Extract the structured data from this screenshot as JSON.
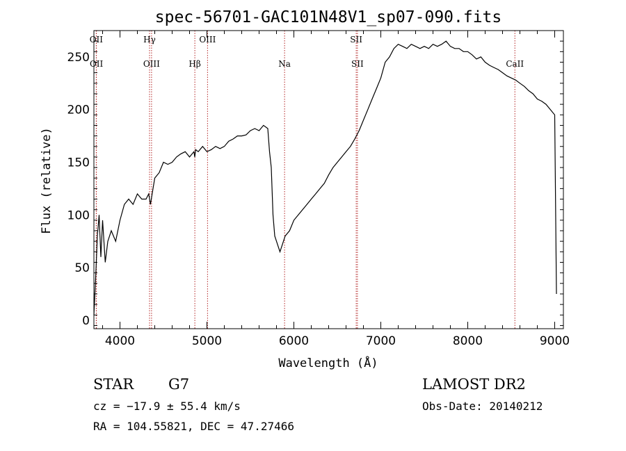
{
  "chart_data": {
    "type": "line",
    "title": "spec-56701-GAC101N48V1_sp07-090.fits",
    "xlabel": "Wavelength (Å)",
    "ylabel": "Flux (relative)",
    "xlim": [
      3700,
      9100
    ],
    "ylim": [
      -8,
      275
    ],
    "xticks": [
      4000,
      5000,
      6000,
      7000,
      8000,
      9000
    ],
    "yticks": [
      0,
      50,
      100,
      150,
      200,
      250
    ],
    "series": [
      {
        "x": [
          3700,
          3720,
          3740,
          3760,
          3780,
          3800,
          3830,
          3860,
          3900,
          3950,
          4000,
          4050,
          4100,
          4150,
          4200,
          4250,
          4300,
          4330,
          4350,
          4380,
          4400,
          4450,
          4500,
          4550,
          4600,
          4650,
          4700,
          4750,
          4800,
          4850,
          4860,
          4870,
          4900,
          4950,
          5000,
          5050,
          5100,
          5150,
          5200,
          5250,
          5300,
          5350,
          5400,
          5450,
          5500,
          5550,
          5600,
          5650,
          5700,
          5720,
          5740,
          5760,
          5780,
          5800,
          5820,
          5840,
          5860,
          5880,
          5900,
          5950,
          6000,
          6050,
          6100,
          6150,
          6200,
          6250,
          6300,
          6350,
          6400,
          6450,
          6500,
          6550,
          6600,
          6650,
          6700,
          6750,
          6800,
          6850,
          6900,
          6950,
          7000,
          7050,
          7100,
          7150,
          7200,
          7250,
          7300,
          7350,
          7400,
          7450,
          7500,
          7550,
          7600,
          7650,
          7700,
          7750,
          7800,
          7850,
          7900,
          7950,
          8000,
          8050,
          8100,
          8150,
          8200,
          8250,
          8300,
          8350,
          8400,
          8450,
          8500,
          8550,
          8600,
          8650,
          8700,
          8750,
          8800,
          8850,
          8900,
          8950,
          9000,
          9020
        ],
        "y": [
          5,
          40,
          80,
          100,
          60,
          95,
          55,
          75,
          85,
          75,
          95,
          110,
          115,
          110,
          120,
          115,
          115,
          120,
          110,
          125,
          135,
          140,
          150,
          148,
          150,
          155,
          158,
          160,
          155,
          160,
          155,
          162,
          160,
          165,
          160,
          162,
          165,
          163,
          165,
          170,
          172,
          175,
          175,
          176,
          180,
          182,
          180,
          185,
          182,
          160,
          145,
          100,
          80,
          75,
          70,
          65,
          70,
          75,
          80,
          85,
          95,
          100,
          105,
          110,
          115,
          120,
          125,
          130,
          138,
          145,
          150,
          155,
          160,
          165,
          172,
          180,
          190,
          200,
          210,
          220,
          230,
          245,
          250,
          258,
          262,
          260,
          258,
          262,
          260,
          258,
          260,
          258,
          262,
          260,
          262,
          265,
          260,
          258,
          258,
          255,
          255,
          252,
          248,
          250,
          245,
          242,
          240,
          238,
          235,
          232,
          230,
          228,
          225,
          222,
          218,
          215,
          210,
          208,
          205,
          200,
          195,
          25
        ]
      }
    ],
    "emission_lines": [
      {
        "label": "OII",
        "wavelength": 3727,
        "row": "top"
      },
      {
        "label": "OII",
        "wavelength": 3729,
        "row": "bottom"
      },
      {
        "label": "Hγ",
        "wavelength": 4340,
        "row": "top"
      },
      {
        "label": "OIII",
        "wavelength": 4363,
        "row": "bottom"
      },
      {
        "label": "Hβ",
        "wavelength": 4861,
        "row": "bottom"
      },
      {
        "label": "OIII",
        "wavelength": 5007,
        "row": "top"
      },
      {
        "label": "Na",
        "wavelength": 5893,
        "row": "bottom"
      },
      {
        "label": "SII",
        "wavelength": 6717,
        "row": "top"
      },
      {
        "label": "SII",
        "wavelength": 6731,
        "row": "bottom"
      },
      {
        "label": "CaII",
        "wavelength": 8542,
        "row": "bottom"
      }
    ],
    "line_color": "#000000",
    "marker_color": "#b22222",
    "grid": false,
    "legend": "none"
  },
  "info": {
    "object_class": "STAR",
    "subclass": "G7",
    "redshift": "cz = −17.9 ± 55.4 km/s",
    "coordinates": "RA = 104.55821, DEC =  47.27466",
    "survey": "LAMOST DR2",
    "obs_date": "Obs-Date: 20140212"
  }
}
